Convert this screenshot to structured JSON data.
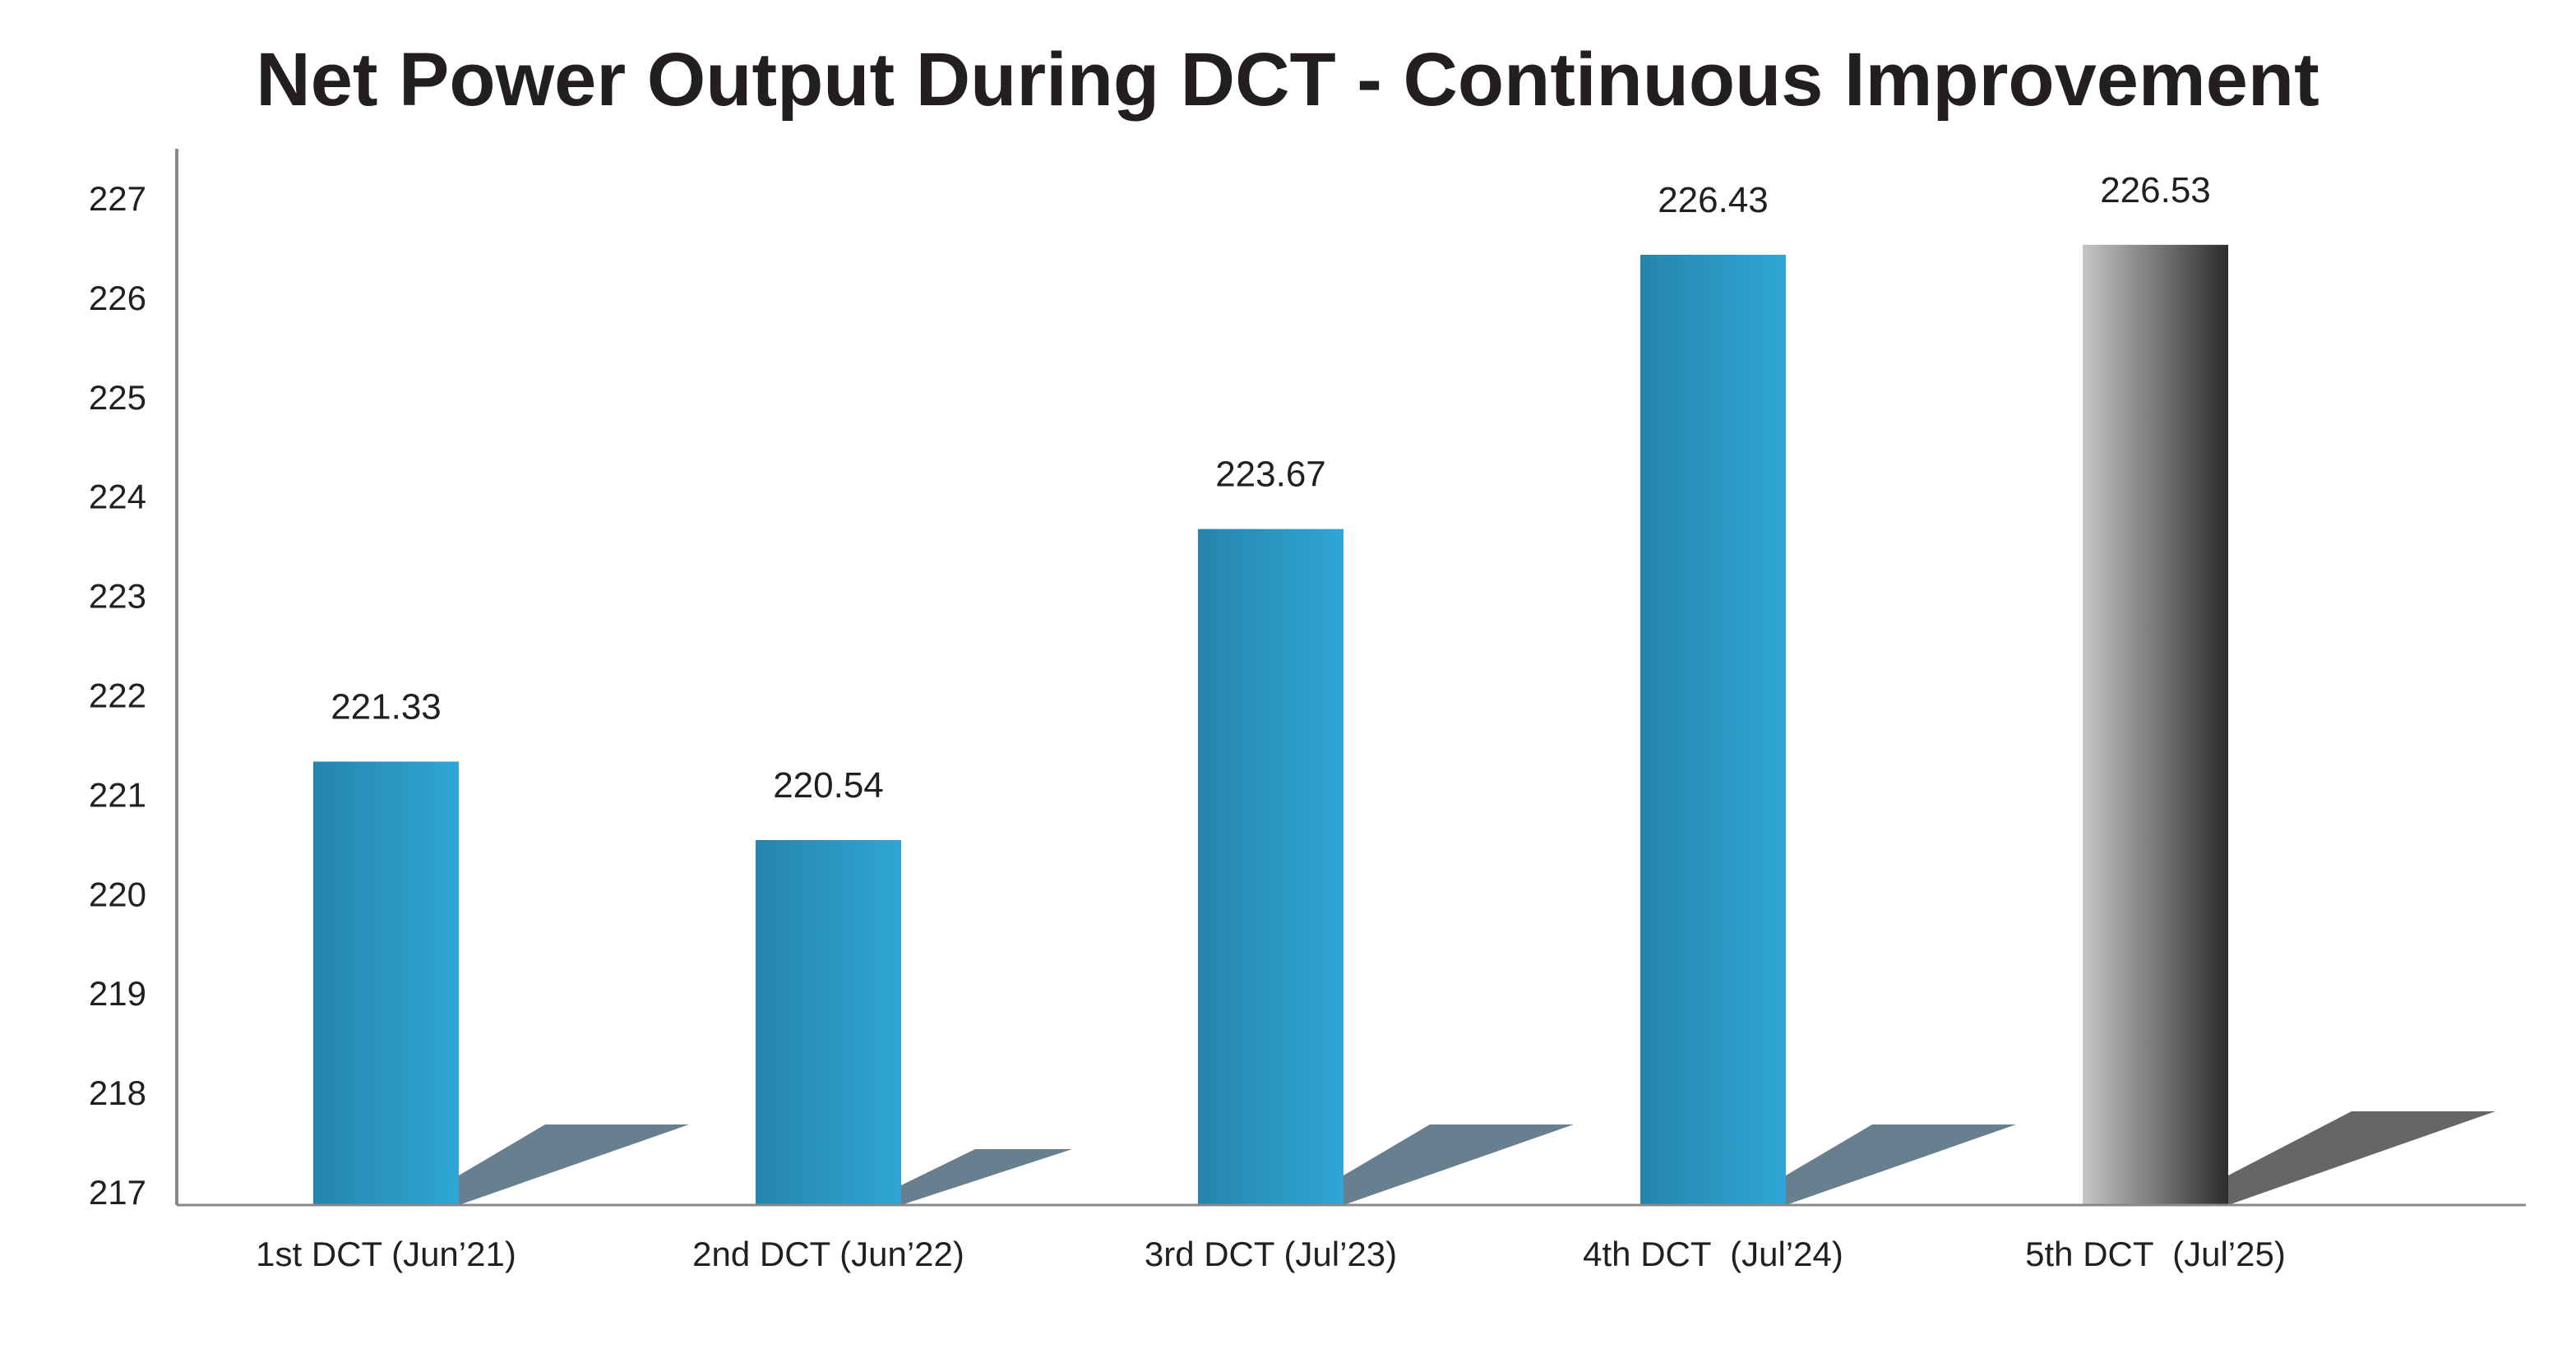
{
  "chart_data": {
    "type": "bar",
    "title": "Net Power Output During DCT - Continuous Improvement",
    "xlabel": "",
    "ylabel": "",
    "ylim": [
      217,
      227
    ],
    "yticks": [
      217,
      218,
      219,
      220,
      221,
      222,
      223,
      224,
      225,
      226,
      227
    ],
    "categories": [
      "1st DCT (Jun’21)",
      "2nd DCT (Jun’22)",
      "3rd DCT (Jul’23)",
      "4th DCT  (Jul’24)",
      "5th DCT  (Jul’25)"
    ],
    "values": [
      221.33,
      220.54,
      223.67,
      226.43,
      226.53
    ],
    "value_labels": [
      "221.33",
      "220.54",
      "223.67",
      "226.43",
      "226.53"
    ],
    "grid": false,
    "colors": {
      "bar_gradient": [
        "#2585ab",
        "#2fa6d6"
      ],
      "highlight_gradient": [
        "#c6c6c6",
        "#2e2b2c"
      ],
      "shadow": "#687f8f",
      "highlight_shadow": "#666666",
      "axis": "#888888"
    }
  }
}
